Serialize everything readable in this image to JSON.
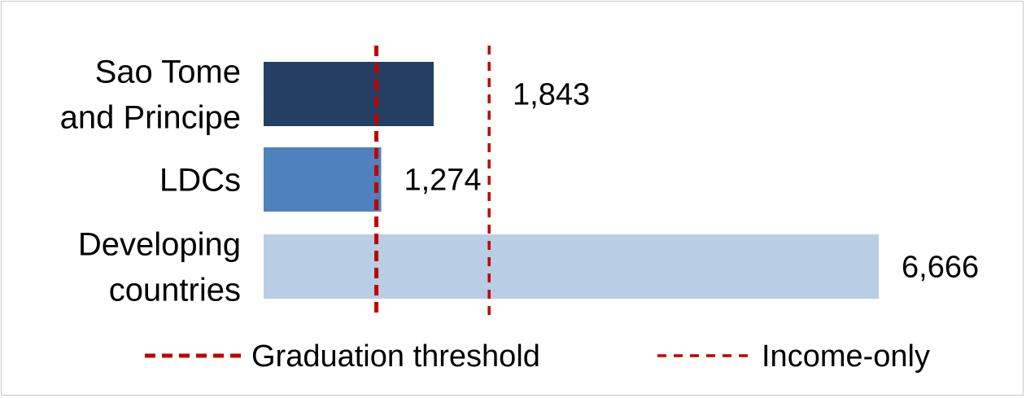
{
  "chart_data": {
    "type": "bar",
    "orientation": "horizontal",
    "categories": [
      [
        "Sao Tome",
        "and Principe"
      ],
      [
        "LDCs"
      ],
      [
        "Developing",
        "countries"
      ]
    ],
    "values": [
      1843,
      1274,
      6666
    ],
    "value_labels": [
      "1,843",
      "1,274",
      "6,666"
    ],
    "bar_colors": [
      "#253f63",
      "#4f81bd",
      "#b9cde5"
    ],
    "xlim": [
      0,
      6666
    ],
    "reference_lines": [
      {
        "name": "Graduation threshold",
        "value": 1222,
        "color": "#c00000",
        "style": "dashed-bold"
      },
      {
        "name": "Income-only",
        "value": 2444,
        "color": "#c00000",
        "style": "dashed"
      }
    ],
    "legend_position": "bottom",
    "grid": false,
    "title": "",
    "xlabel": "",
    "ylabel": ""
  }
}
